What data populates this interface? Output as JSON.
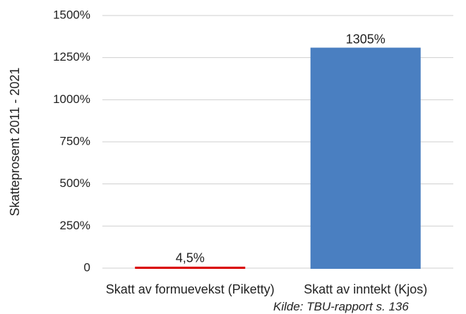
{
  "chart_data": {
    "type": "bar",
    "ylabel": "Skatteprosent 2011 - 2021",
    "categories": [
      "Skatt av formuevekst (Piketty)",
      "Skatt av inntekt (Kjos)"
    ],
    "values": [
      4.5,
      1305
    ],
    "value_labels": [
      "4,5%",
      "1305%"
    ],
    "colors": [
      "#d90000",
      "#4a7fc1"
    ],
    "ylim": [
      0,
      1500
    ],
    "yticks": [
      0,
      {
        "value": 250,
        "label": "250%"
      },
      {
        "value": 500,
        "label": "500%"
      },
      {
        "value": 750,
        "label": "750%"
      },
      {
        "value": 1000,
        "label": "1000%"
      },
      {
        "value": 1250,
        "label": "1250%"
      },
      {
        "value": 1500,
        "label": "1500%"
      }
    ],
    "grid": true,
    "source": "Kilde: TBU-rapport s. 136"
  }
}
